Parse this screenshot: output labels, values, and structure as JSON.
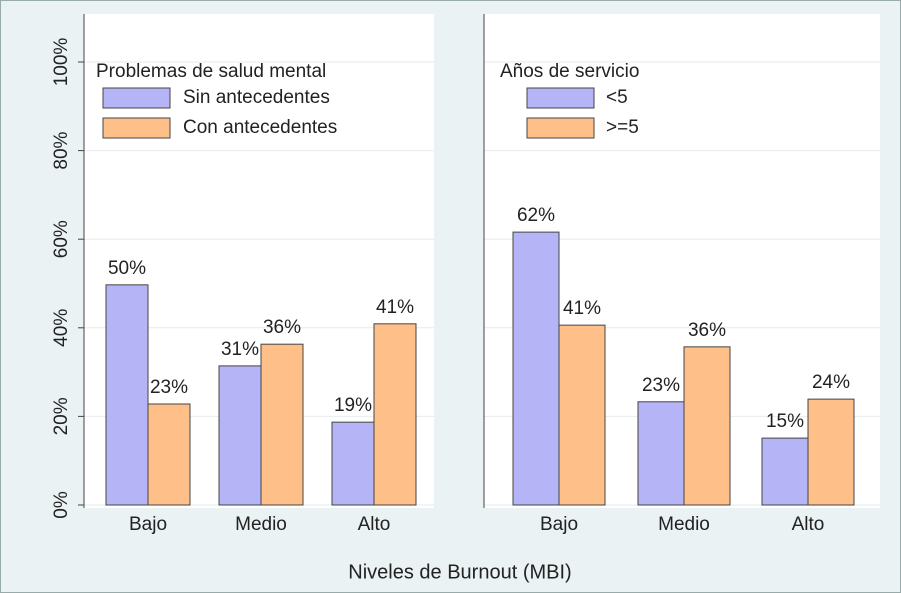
{
  "chart_data": [
    {
      "type": "bar",
      "xlabel": "Niveles de Burnout (MBI)",
      "legend_title": "Problemas de salud mental",
      "categories": [
        "Bajo",
        "Medio",
        "Alto"
      ],
      "series": [
        {
          "name": "Sin antecedentes",
          "color": "#b4b4f6",
          "values": [
            49.7,
            31.4,
            18.7
          ],
          "value_labels": [
            "50%",
            "31%",
            "19%"
          ]
        },
        {
          "name": "Con antecedentes",
          "color": "#ffbf88",
          "values": [
            22.8,
            36.3,
            40.9
          ],
          "value_labels": [
            "23%",
            "36%",
            "41%"
          ]
        }
      ],
      "ylim": [
        0,
        100
      ],
      "yticks": [
        {
          "value": 0,
          "label": "0%"
        },
        {
          "value": 20,
          "label": "20%"
        },
        {
          "value": 40,
          "label": "40%"
        },
        {
          "value": 60,
          "label": "60%"
        },
        {
          "value": 80,
          "label": "80%"
        },
        {
          "value": 100,
          "label": "100%"
        }
      ],
      "grid": true
    },
    {
      "type": "bar",
      "legend_title": "Años de servicio",
      "categories": [
        "Bajo",
        "Medio",
        "Alto"
      ],
      "series": [
        {
          "name": "<5",
          "color": "#b4b4f6",
          "values": [
            61.6,
            23.3,
            15.1
          ],
          "value_labels": [
            "62%",
            "23%",
            "15%"
          ]
        },
        {
          "name": ">=5",
          "color": "#ffbf88",
          "values": [
            40.6,
            35.7,
            23.9
          ],
          "value_labels": [
            "41%",
            "36%",
            "24%"
          ]
        }
      ],
      "ylim": [
        0,
        100
      ],
      "grid": true
    }
  ]
}
